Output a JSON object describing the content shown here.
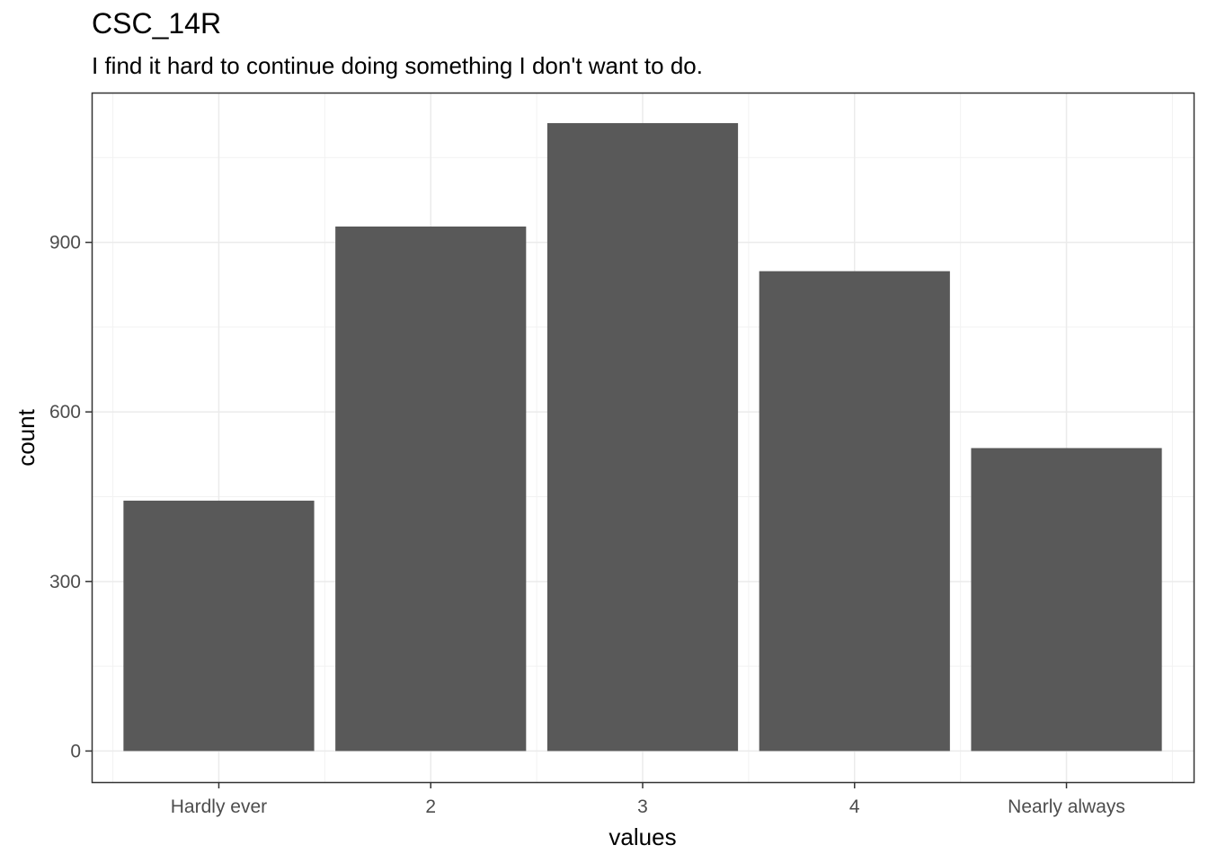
{
  "chart_data": {
    "type": "bar",
    "title": "CSC_14R",
    "subtitle": "I find it hard to continue doing something I don't want to do.",
    "xlabel": "values",
    "ylabel": "count",
    "categories": [
      "Hardly ever",
      "2",
      "3",
      "4",
      "Nearly always"
    ],
    "values": [
      443,
      928,
      1111,
      849,
      536
    ],
    "ylim": [
      -55,
      1165
    ],
    "yticks": [
      0,
      300,
      600,
      900
    ],
    "ytick_labels": [
      "0",
      "300",
      "600",
      "900"
    ],
    "bar_color": "#595959",
    "grid_major_color": "#ebebeb",
    "grid_minor_color": "#f2f2f2",
    "grid": true,
    "legend": "none"
  }
}
